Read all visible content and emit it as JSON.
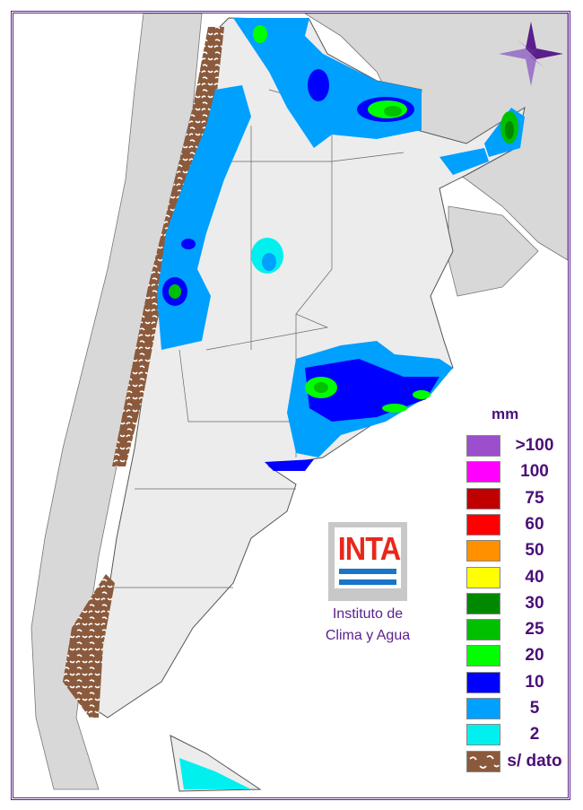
{
  "logo": {
    "text": "INTA",
    "line1": "Instituto de",
    "line2": "Clima y Agua"
  },
  "legend": {
    "unit": "mm",
    "items": [
      {
        "label": ">100",
        "color": "#9b4fcc"
      },
      {
        "label": "100",
        "color": "#ff00ff"
      },
      {
        "label": "75",
        "color": "#c00000"
      },
      {
        "label": "60",
        "color": "#ff0000"
      },
      {
        "label": "50",
        "color": "#ff9000"
      },
      {
        "label": "40",
        "color": "#ffff00"
      },
      {
        "label": "30",
        "color": "#008800"
      },
      {
        "label": "25",
        "color": "#00c000"
      },
      {
        "label": "20",
        "color": "#00ff00"
      },
      {
        "label": "10",
        "color": "#0000ff"
      },
      {
        "label": "5",
        "color": "#00a0ff"
      },
      {
        "label": "2",
        "color": "#00f0f0"
      },
      {
        "label": "s/ dato",
        "color": "#8b5a3c"
      }
    ]
  },
  "compass": {
    "icon": "compass-rose-icon"
  },
  "colors": {
    "frame": "#5a1f8a",
    "neighbors": "#d8d8d8",
    "land": "#ececec",
    "no_data": "#8b5a3c"
  }
}
